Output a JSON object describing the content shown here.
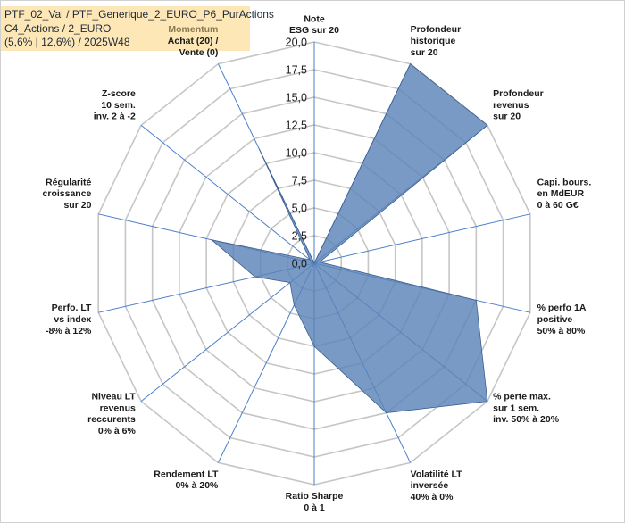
{
  "header": {
    "line1": "PTF_02_Val / PTF_Generique_2_EURO_P6_PurActions",
    "line2": "C4_Actions / 2_EURO",
    "line3": "(5,6% | 12,6%) / 2025W48"
  },
  "chart_data": {
    "type": "radar",
    "title": "",
    "rmin": 0,
    "rmax": 20,
    "ticks": [
      0,
      2.5,
      5,
      7.5,
      10,
      12.5,
      15,
      17.5,
      20
    ],
    "tick_labels": [
      "0,0",
      "2,5",
      "5,0",
      "7,5",
      "10,0",
      "12,5",
      "15,0",
      "17,5",
      "20,0"
    ],
    "categories": [
      [
        "Note",
        "ESG sur 20"
      ],
      [
        "Profondeur",
        "historique",
        "sur 20"
      ],
      [
        "Profondeur",
        "revenus",
        "sur 20"
      ],
      [
        "Capi. bours.",
        "en MdEUR",
        "0 à 60 G€"
      ],
      [
        "% perfo 1A",
        "positive",
        "50% à 80%"
      ],
      [
        "% perte max.",
        "sur 1 sem.",
        "inv. 50% à 20%"
      ],
      [
        "Volatilité LT",
        "inversée",
        "40% à 0%"
      ],
      [
        "Ratio Sharpe",
        "0 à 1"
      ],
      [
        "Rendement LT",
        "0% à 20%"
      ],
      [
        "Niveau LT",
        "revenus",
        "reccurents",
        "0% à 6%"
      ],
      [
        "Perfo. LT",
        "vs index",
        "-8% à 12%"
      ],
      [
        "Régularité",
        "croissance",
        "sur 20"
      ],
      [
        "Z-score",
        "10 sem.",
        "inv. 2 à -2"
      ],
      [
        "Momentum",
        "Achat (20) /",
        "Vente (0)"
      ]
    ],
    "series": [
      {
        "name": "PTF_02_Val",
        "values": [
          0,
          20,
          20,
          0.5,
          15,
          20,
          15,
          7.5,
          4.2,
          2.8,
          5.5,
          9.5,
          0.5,
          11.5
        ]
      }
    ],
    "colors": {
      "fill": "#5b84b8",
      "spoke": "#4a7fc9",
      "grid": "#c6c6c6",
      "header_bg": "#fde7b6",
      "momentum_label": "#8a7a52"
    }
  }
}
